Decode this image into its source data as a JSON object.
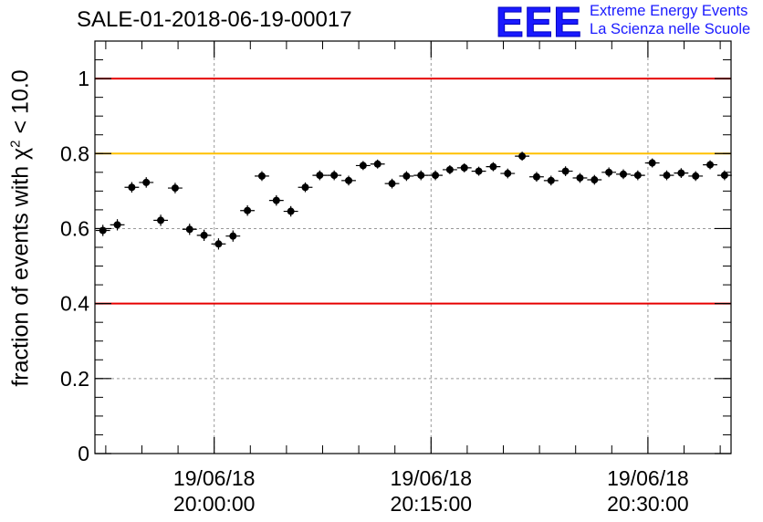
{
  "header": {
    "title": "SALE-01-2018-06-19-00017"
  },
  "logo": {
    "mark": "EEE",
    "line1": "Extreme Energy Events",
    "line2": "La Scienza nelle Scuole"
  },
  "colors": {
    "red_line": "#e60000",
    "yellow_line": "#ffc000",
    "logo_blue": "#1a1aff",
    "marker": "#000000"
  },
  "chart_data": {
    "type": "scatter",
    "title": "SALE-01-2018-06-19-00017",
    "ylabel_prefix": "fraction of events with χ",
    "ylabel_sup": "2",
    "ylabel_suffix": " < 10.0",
    "ylim": [
      0,
      1.1
    ],
    "yticks": [
      0,
      0.2,
      0.4,
      0.6,
      0.8,
      1
    ],
    "ytick_labels": [
      "0",
      "0.2",
      "0.4",
      "0.6",
      "0.8",
      "1"
    ],
    "xlim_minutes": [
      -8.25,
      35.75
    ],
    "xticks_minutes": [
      0,
      15,
      30
    ],
    "xtick_labels": [
      [
        "19/06/18",
        "20:00:00"
      ],
      [
        "19/06/18",
        "20:15:00"
      ],
      [
        "19/06/18",
        "20:30:00"
      ]
    ],
    "reference_lines": [
      {
        "y": 1.0,
        "color": "red"
      },
      {
        "y": 0.8,
        "color": "yellow"
      },
      {
        "y": 0.4,
        "color": "red"
      }
    ],
    "grid": true,
    "x_minutes": [
      -7.7,
      -6.7,
      -5.7,
      -4.7,
      -3.7,
      -2.7,
      -1.7,
      -0.7,
      0.3,
      1.3,
      2.3,
      3.3,
      4.3,
      5.3,
      6.3,
      7.3,
      8.3,
      9.3,
      10.3,
      11.3,
      12.3,
      13.3,
      14.3,
      15.3,
      16.3,
      17.3,
      18.3,
      19.3,
      20.3,
      21.3,
      22.3,
      23.3,
      24.3,
      25.3,
      26.3,
      27.3,
      28.3,
      29.3,
      30.3,
      31.3,
      32.3,
      33.3,
      34.3,
      35.3
    ],
    "values": [
      0.595,
      0.61,
      0.71,
      0.723,
      0.622,
      0.708,
      0.598,
      0.582,
      0.559,
      0.58,
      0.648,
      0.74,
      0.675,
      0.646,
      0.71,
      0.742,
      0.742,
      0.728,
      0.768,
      0.772,
      0.72,
      0.74,
      0.742,
      0.742,
      0.757,
      0.762,
      0.753,
      0.765,
      0.747,
      0.793,
      0.738,
      0.728,
      0.753,
      0.735,
      0.73,
      0.75,
      0.745,
      0.742,
      0.775,
      0.742,
      0.748,
      0.74,
      0.77,
      0.742
    ],
    "errors": [
      0.015,
      0.015,
      0.014,
      0.014,
      0.015,
      0.014,
      0.015,
      0.015,
      0.015,
      0.015,
      0.014,
      0.013,
      0.014,
      0.014,
      0.013,
      0.013,
      0.013,
      0.013,
      0.012,
      0.012,
      0.013,
      0.013,
      0.013,
      0.013,
      0.012,
      0.012,
      0.012,
      0.012,
      0.013,
      0.012,
      0.013,
      0.013,
      0.013,
      0.013,
      0.013,
      0.013,
      0.013,
      0.013,
      0.012,
      0.013,
      0.013,
      0.013,
      0.012,
      0.013
    ]
  }
}
